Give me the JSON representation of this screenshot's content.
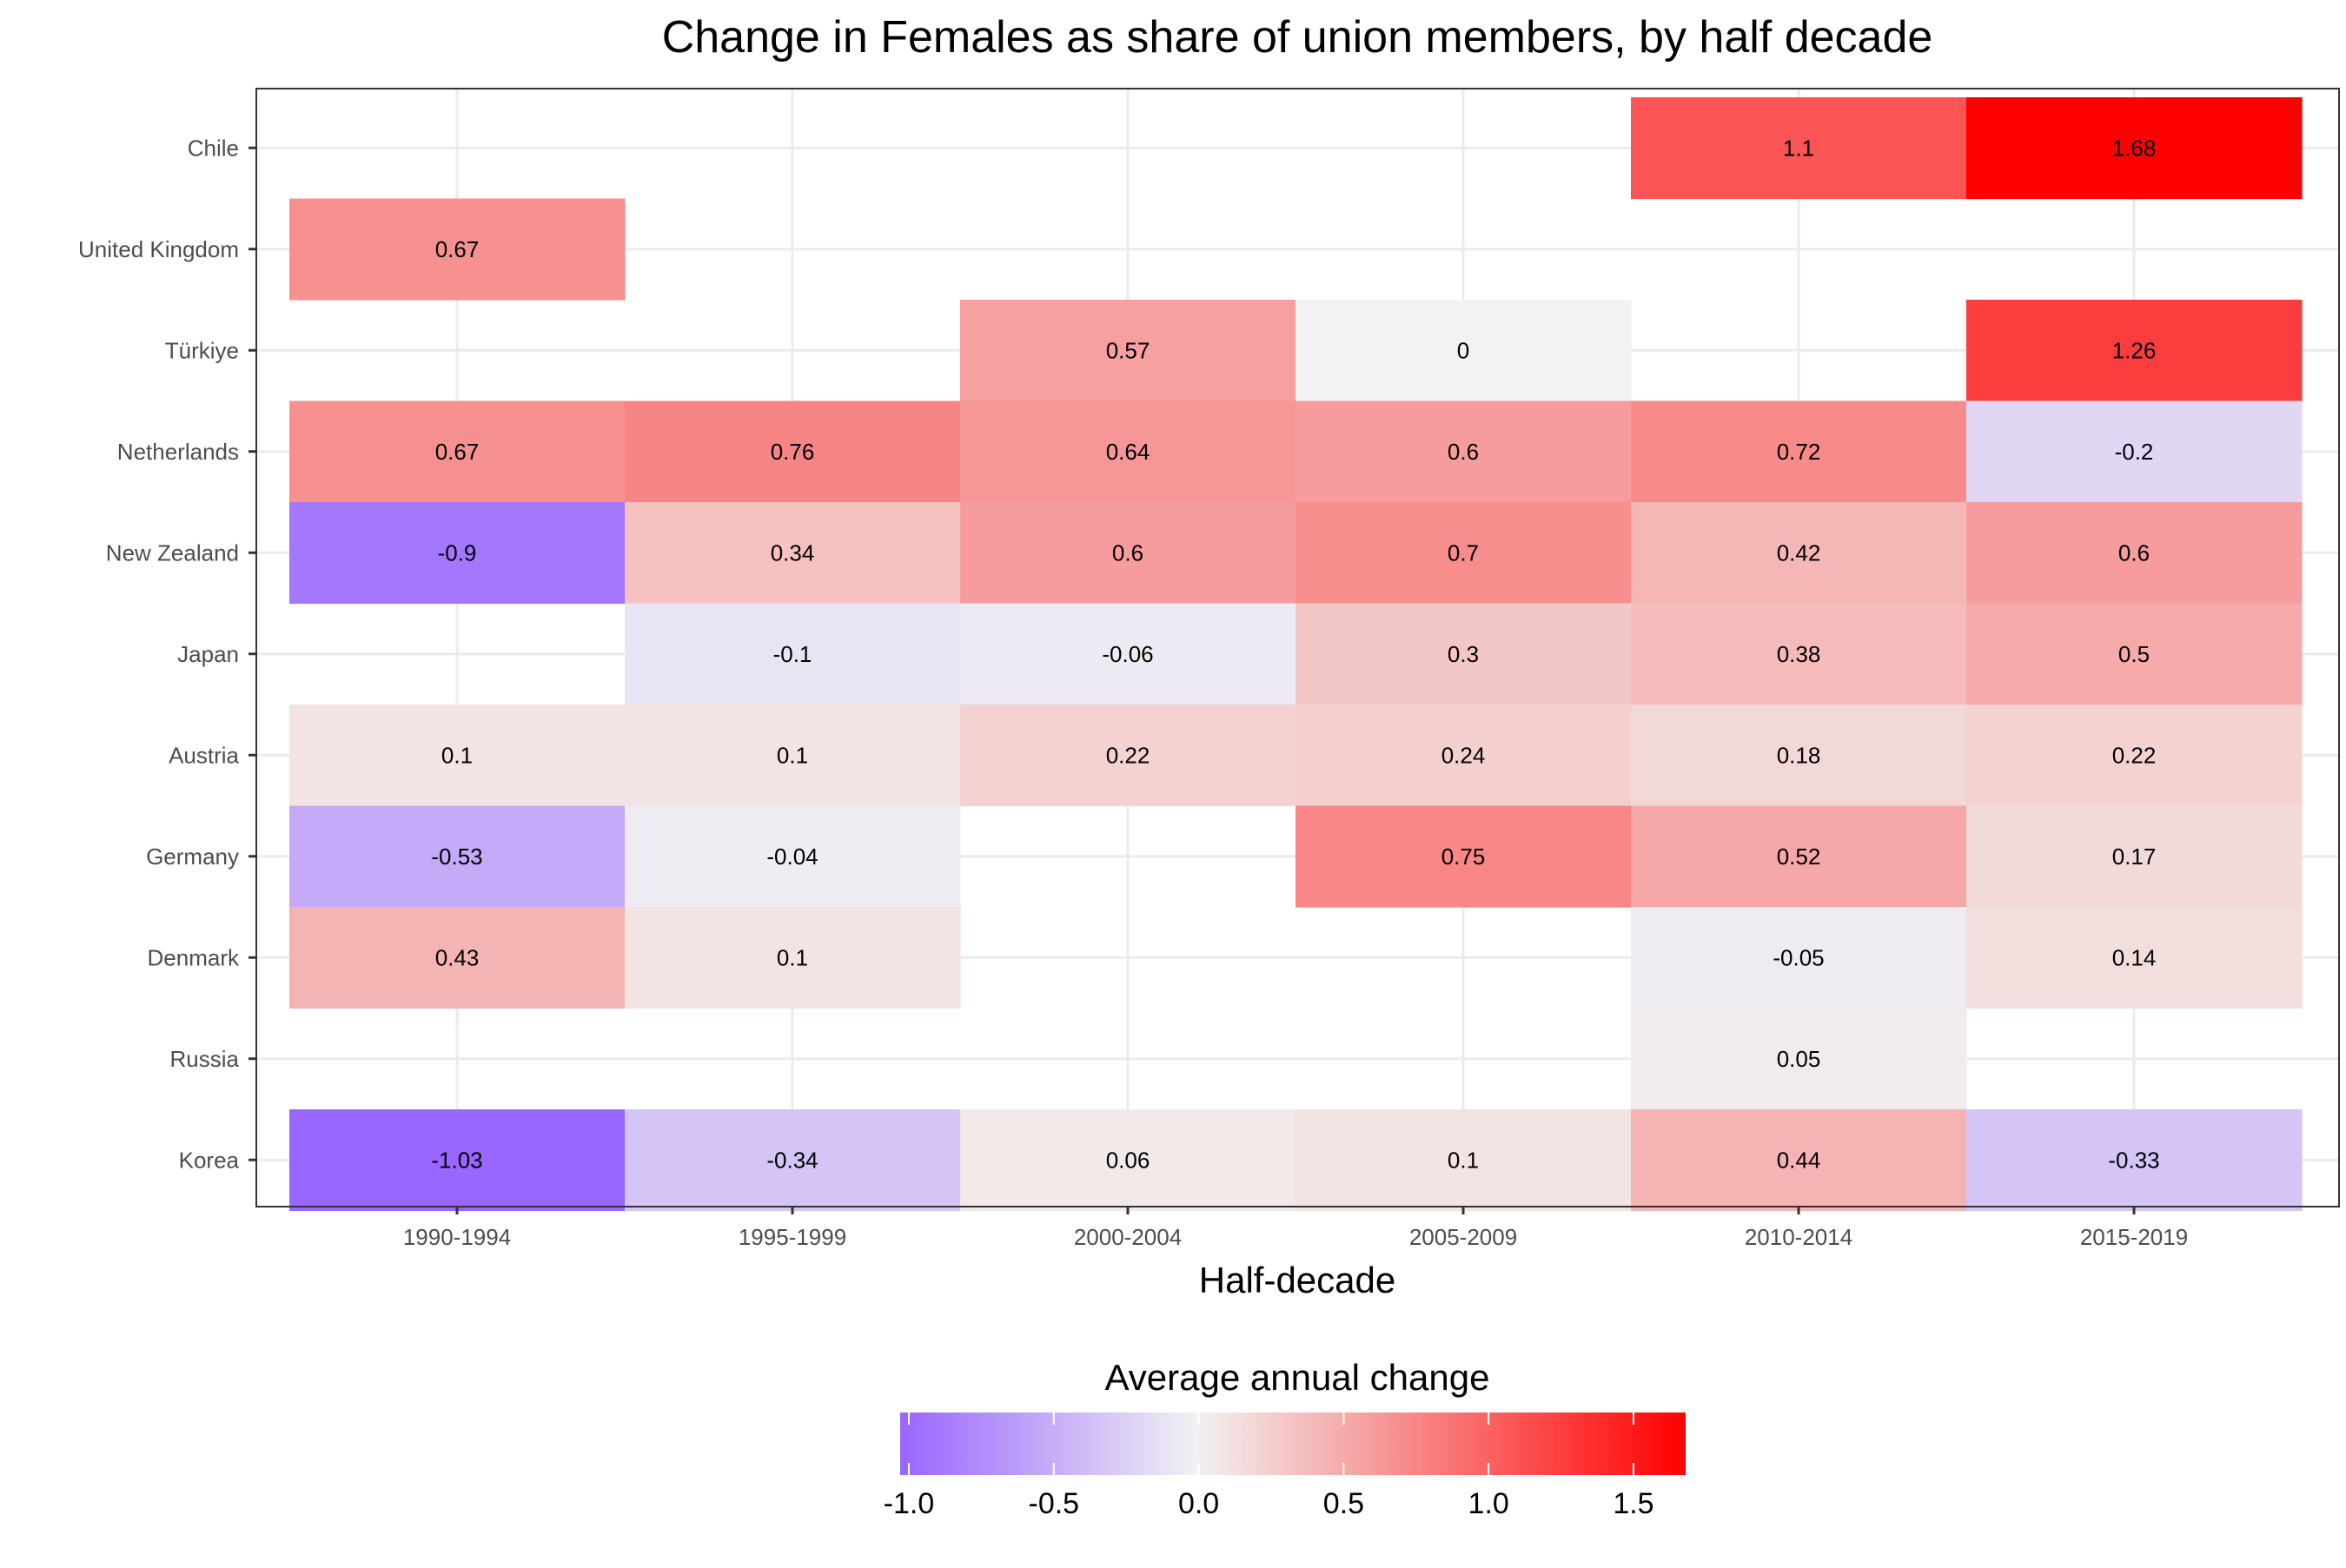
{
  "chart_data": {
    "type": "heatmap",
    "title": "Change in Females as share of union members, by half decade",
    "xlabel": "Half-decade",
    "ylabel": "",
    "x_categories": [
      "1990-1994",
      "1995-1999",
      "2000-2004",
      "2005-2009",
      "2010-2014",
      "2015-2019"
    ],
    "y_categories": [
      "Chile",
      "United Kingdom",
      "Türkiye",
      "Netherlands",
      "New Zealand",
      "Japan",
      "Austria",
      "Germany",
      "Denmark",
      "Russia",
      "Korea"
    ],
    "cells": [
      {
        "country": "Chile",
        "period": "2010-2014",
        "value": 1.1,
        "label": "1.1"
      },
      {
        "country": "Chile",
        "period": "2015-2019",
        "value": 1.68,
        "label": "1.68"
      },
      {
        "country": "United Kingdom",
        "period": "1990-1994",
        "value": 0.67,
        "label": "0.67"
      },
      {
        "country": "Türkiye",
        "period": "2000-2004",
        "value": 0.57,
        "label": "0.57"
      },
      {
        "country": "Türkiye",
        "period": "2005-2009",
        "value": 0,
        "label": "0"
      },
      {
        "country": "Türkiye",
        "period": "2015-2019",
        "value": 1.26,
        "label": "1.26"
      },
      {
        "country": "Netherlands",
        "period": "1990-1994",
        "value": 0.67,
        "label": "0.67"
      },
      {
        "country": "Netherlands",
        "period": "1995-1999",
        "value": 0.76,
        "label": "0.76"
      },
      {
        "country": "Netherlands",
        "period": "2000-2004",
        "value": 0.64,
        "label": "0.64"
      },
      {
        "country": "Netherlands",
        "period": "2005-2009",
        "value": 0.6,
        "label": "0.6"
      },
      {
        "country": "Netherlands",
        "period": "2010-2014",
        "value": 0.72,
        "label": "0.72"
      },
      {
        "country": "Netherlands",
        "period": "2015-2019",
        "value": -0.2,
        "label": "-0.2"
      },
      {
        "country": "New Zealand",
        "period": "1990-1994",
        "value": -0.9,
        "label": "-0.9"
      },
      {
        "country": "New Zealand",
        "period": "1995-1999",
        "value": 0.34,
        "label": "0.34"
      },
      {
        "country": "New Zealand",
        "period": "2000-2004",
        "value": 0.6,
        "label": "0.6"
      },
      {
        "country": "New Zealand",
        "period": "2005-2009",
        "value": 0.7,
        "label": "0.7"
      },
      {
        "country": "New Zealand",
        "period": "2010-2014",
        "value": 0.42,
        "label": "0.42"
      },
      {
        "country": "New Zealand",
        "period": "2015-2019",
        "value": 0.6,
        "label": "0.6"
      },
      {
        "country": "Japan",
        "period": "1995-1999",
        "value": -0.1,
        "label": "-0.1"
      },
      {
        "country": "Japan",
        "period": "2000-2004",
        "value": -0.06,
        "label": "-0.06"
      },
      {
        "country": "Japan",
        "period": "2005-2009",
        "value": 0.3,
        "label": "0.3"
      },
      {
        "country": "Japan",
        "period": "2010-2014",
        "value": 0.38,
        "label": "0.38"
      },
      {
        "country": "Japan",
        "period": "2015-2019",
        "value": 0.5,
        "label": "0.5"
      },
      {
        "country": "Austria",
        "period": "1990-1994",
        "value": 0.1,
        "label": "0.1"
      },
      {
        "country": "Austria",
        "period": "1995-1999",
        "value": 0.1,
        "label": "0.1"
      },
      {
        "country": "Austria",
        "period": "2000-2004",
        "value": 0.22,
        "label": "0.22"
      },
      {
        "country": "Austria",
        "period": "2005-2009",
        "value": 0.24,
        "label": "0.24"
      },
      {
        "country": "Austria",
        "period": "2010-2014",
        "value": 0.18,
        "label": "0.18"
      },
      {
        "country": "Austria",
        "period": "2015-2019",
        "value": 0.22,
        "label": "0.22"
      },
      {
        "country": "Germany",
        "period": "1990-1994",
        "value": -0.53,
        "label": "-0.53"
      },
      {
        "country": "Germany",
        "period": "1995-1999",
        "value": -0.04,
        "label": "-0.04"
      },
      {
        "country": "Germany",
        "period": "2005-2009",
        "value": 0.75,
        "label": "0.75"
      },
      {
        "country": "Germany",
        "period": "2010-2014",
        "value": 0.52,
        "label": "0.52"
      },
      {
        "country": "Germany",
        "period": "2015-2019",
        "value": 0.17,
        "label": "0.17"
      },
      {
        "country": "Denmark",
        "period": "1990-1994",
        "value": 0.43,
        "label": "0.43"
      },
      {
        "country": "Denmark",
        "period": "1995-1999",
        "value": 0.1,
        "label": "0.1"
      },
      {
        "country": "Denmark",
        "period": "2010-2014",
        "value": -0.05,
        "label": "-0.05"
      },
      {
        "country": "Denmark",
        "period": "2015-2019",
        "value": 0.14,
        "label": "0.14"
      },
      {
        "country": "Russia",
        "period": "2010-2014",
        "value": 0.05,
        "label": "0.05"
      },
      {
        "country": "Korea",
        "period": "1990-1994",
        "value": -1.03,
        "label": "-1.03"
      },
      {
        "country": "Korea",
        "period": "1995-1999",
        "value": -0.34,
        "label": "-0.34"
      },
      {
        "country": "Korea",
        "period": "2000-2004",
        "value": 0.06,
        "label": "0.06"
      },
      {
        "country": "Korea",
        "period": "2005-2009",
        "value": 0.1,
        "label": "0.1"
      },
      {
        "country": "Korea",
        "period": "2010-2014",
        "value": 0.44,
        "label": "0.44"
      },
      {
        "country": "Korea",
        "period": "2015-2019",
        "value": -0.33,
        "label": "-0.33"
      }
    ],
    "legend": {
      "title": "Average annual change",
      "placement": "bottom",
      "range": [
        -1.03,
        1.68
      ],
      "tick_values": [
        -1.0,
        -0.5,
        0.0,
        0.5,
        1.0,
        1.5
      ],
      "tick_labels": [
        "-1.0",
        "-0.5",
        "0.0",
        "0.5",
        "1.0",
        "1.5"
      ],
      "colors": {
        "low": "#9966ff",
        "mid": "#f2f2f2",
        "high": "#ff0000"
      }
    },
    "grid": true,
    "panel_border": true
  }
}
